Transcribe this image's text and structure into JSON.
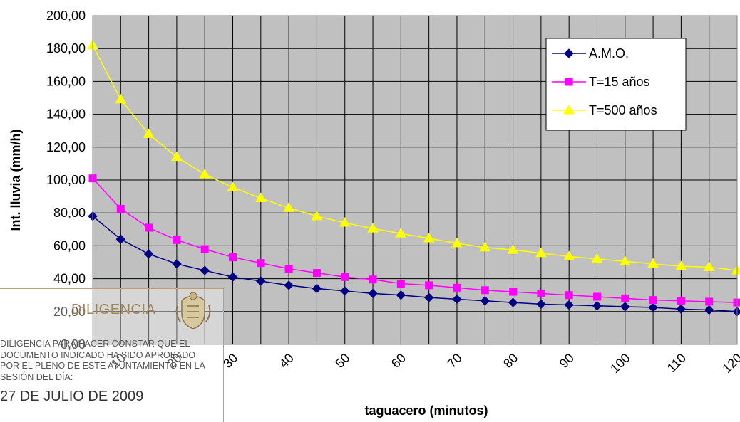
{
  "chart_data": {
    "type": "line",
    "title": "",
    "xlabel": "taguacero (minutos)",
    "ylabel": "Int. lluvia (mm/h)",
    "x": [
      5,
      10,
      15,
      20,
      25,
      30,
      35,
      40,
      45,
      50,
      55,
      60,
      65,
      70,
      75,
      80,
      85,
      90,
      95,
      100,
      105,
      110,
      115,
      120
    ],
    "xlim": [
      5,
      120
    ],
    "xticks": [
      "10",
      "20",
      "30",
      "40",
      "50",
      "60",
      "70",
      "80",
      "90",
      "100",
      "110",
      "120"
    ],
    "ylim": [
      0,
      200
    ],
    "yticks": [
      "0,00",
      "20,00",
      "40,00",
      "60,00",
      "80,00",
      "100,00",
      "120,00",
      "140,00",
      "160,00",
      "180,00",
      "200,00"
    ],
    "grid": true,
    "legend_position": "top-right",
    "series": [
      {
        "name": "A.M.O.",
        "color": "#000080",
        "marker": "diamond",
        "values": [
          78,
          64,
          55,
          49,
          45,
          41,
          38.5,
          36,
          34,
          32.5,
          31,
          30,
          28.5,
          27.5,
          26.5,
          25.5,
          24.5,
          24,
          23.5,
          23,
          22.5,
          21.5,
          21,
          20
        ]
      },
      {
        "name": "T=15 años",
        "color": "#ff00ff",
        "marker": "square",
        "values": [
          101,
          82.5,
          71,
          63.5,
          58,
          53,
          49.5,
          46,
          43.5,
          41,
          39.5,
          37,
          36,
          34.5,
          33,
          32,
          31,
          30,
          29,
          28,
          27,
          26.5,
          26,
          25.5
        ]
      },
      {
        "name": "T=500 años",
        "color": "#ffff00",
        "marker": "triangle",
        "values": [
          182,
          149,
          128,
          114,
          103.5,
          95.5,
          89,
          83,
          78,
          74,
          70.5,
          67.5,
          64.5,
          61.5,
          59,
          57.5,
          55.5,
          53.5,
          52,
          50.5,
          49,
          47.5,
          47,
          45
        ]
      }
    ]
  },
  "stamp": {
    "title": "DILIGENCIA",
    "text": "DILIGENCIA PARA HACER CONSTAR QUE EL DOCUMENTO INDICADO HA SIDO APROBADO POR EL PLENO DE ESTE AYUNTAMIENTO EN LA SESIÓN DEL DÍA:",
    "date": "27 DE JULIO DE 2009"
  }
}
